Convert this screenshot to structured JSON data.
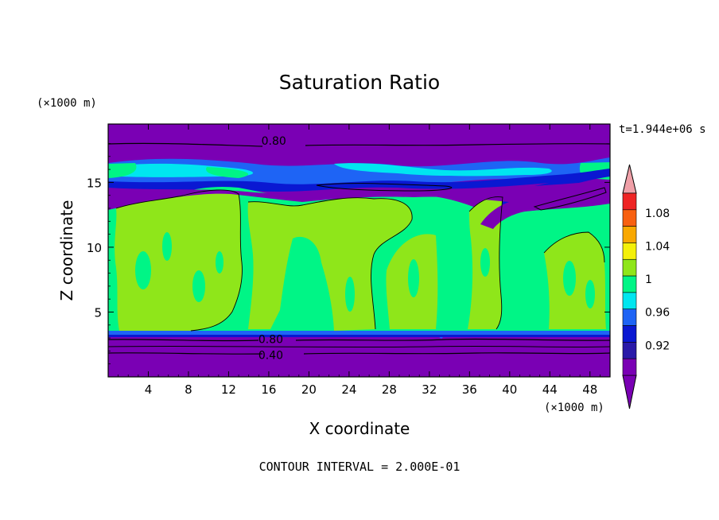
{
  "chart_data": {
    "type": "heatmap",
    "title": "Saturation Ratio",
    "xlabel": "X coordinate",
    "ylabel": "Z coordinate",
    "x_unit": "(×1000 m)",
    "y_unit": "(×1000 m)",
    "time_label": "t=1.944e+06 s",
    "footer": "CONTOUR INTERVAL = 2.000E-01",
    "xlim": [
      0,
      50
    ],
    "ylim": [
      0,
      19.5
    ],
    "x_ticks": [
      4,
      8,
      12,
      16,
      20,
      24,
      28,
      32,
      36,
      40,
      44,
      48
    ],
    "y_ticks": [
      5,
      10,
      15
    ],
    "colorbar": {
      "labels": [
        "0.92",
        "0.96",
        "1",
        "1.04",
        "1.08"
      ],
      "bins": [
        {
          "color": "#7a00b4"
        },
        {
          "color": "#2a1aa8"
        },
        {
          "color": "#0a18d2"
        },
        {
          "color": "#1e64f5"
        },
        {
          "color": "#00e6f0"
        },
        {
          "color": "#00f586"
        },
        {
          "color": "#8fe61a"
        },
        {
          "color": "#f4f00a"
        },
        {
          "color": "#f9a800"
        },
        {
          "color": "#f86010"
        },
        {
          "color": "#ef2424"
        }
      ],
      "under_color": "#7a00b4",
      "over_color": "#f0a0a8"
    },
    "contour_labels": [
      {
        "text": "0.80",
        "x": 16.5,
        "y": 18.2
      },
      {
        "text": "0.80",
        "x": 16.2,
        "y": 2.9
      },
      {
        "text": "0.40",
        "x": 16.2,
        "y": 1.7
      }
    ],
    "layers": {
      "upper_dry": [
        17.2,
        19.5
      ],
      "mid_moist": [
        3.4,
        13.5
      ],
      "lower_dry": [
        0,
        3.4
      ]
    }
  }
}
